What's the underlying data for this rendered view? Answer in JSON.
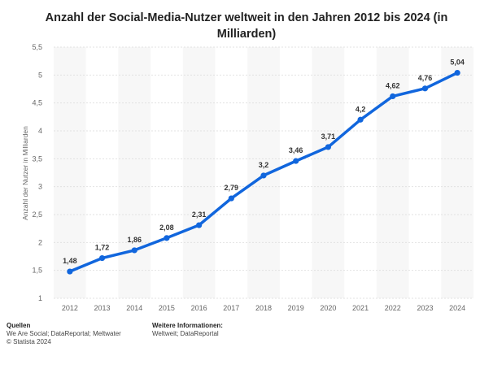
{
  "chart_data": {
    "type": "line",
    "title_line1": "Anzahl der Social-Media-Nutzer weltweit in den Jahren 2012 bis 2024 (in",
    "title_line2": "Milliarden)",
    "ylabel": "Anzahl der Nutzer in Milliarden",
    "xlabel": "",
    "categories": [
      "2012",
      "2013",
      "2014",
      "2015",
      "2016",
      "2017",
      "2018",
      "2019",
      "2020",
      "2021",
      "2022",
      "2023",
      "2024"
    ],
    "values": [
      1.48,
      1.72,
      1.86,
      2.08,
      2.31,
      2.79,
      3.2,
      3.46,
      3.71,
      4.2,
      4.62,
      4.76,
      5.04
    ],
    "value_labels": [
      "1,48",
      "1,72",
      "1,86",
      "2,08",
      "2,31",
      "2,79",
      "3,2",
      "3,46",
      "3,71",
      "4,2",
      "4,62",
      "4,76",
      "5,04"
    ],
    "ylim": [
      1,
      5.5
    ],
    "yticks": [
      1,
      1.5,
      2,
      2.5,
      3,
      3.5,
      4,
      4.5,
      5,
      5.5
    ],
    "ytick_labels": [
      "1",
      "1,5",
      "2",
      "2,5",
      "3",
      "3,5",
      "4",
      "4,5",
      "5",
      "5,5"
    ],
    "grid": true,
    "line_color": "#1166dd"
  },
  "footer": {
    "sources_heading": "Quellen",
    "sources_text": "We Are Social; DataReportal; Meltwater",
    "copyright": "© Statista 2024",
    "more_heading": "Weitere Informationen:",
    "more_text": "Weltweit; DataReportal"
  }
}
